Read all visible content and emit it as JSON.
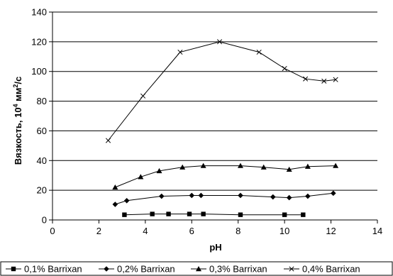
{
  "chart_data": {
    "type": "line",
    "xlabel": "pH",
    "ylabel_main": "Вязкость, 10",
    "ylabel_sup": "4",
    "ylabel_unit": " мм",
    "ylabel_sup2": "2",
    "ylabel_tail": "/с",
    "xlim": [
      0,
      14
    ],
    "ylim": [
      0,
      140
    ],
    "x_ticks": [
      "0",
      "2",
      "4",
      "6",
      "8",
      "10",
      "12",
      "14"
    ],
    "y_ticks": [
      "0",
      "20",
      "40",
      "60",
      "80",
      "100",
      "120",
      "140"
    ],
    "grid": "horizontal",
    "legend_position": "bottom",
    "series": [
      {
        "name": "0,1% Barrixan",
        "marker": "square",
        "color": "#000000",
        "points": [
          [
            3.1,
            3.5
          ],
          [
            4.3,
            4
          ],
          [
            5.0,
            4
          ],
          [
            5.9,
            4
          ],
          [
            6.5,
            4
          ],
          [
            8.1,
            3.5
          ],
          [
            10.0,
            3.5
          ],
          [
            10.8,
            3.5
          ]
        ]
      },
      {
        "name": "0,2% Barrixan",
        "marker": "diamond",
        "color": "#000000",
        "points": [
          [
            2.7,
            10.5
          ],
          [
            3.2,
            13
          ],
          [
            4.7,
            16
          ],
          [
            6.0,
            16.5
          ],
          [
            6.4,
            16.5
          ],
          [
            8.1,
            16.5
          ],
          [
            9.5,
            15.5
          ],
          [
            10.2,
            15
          ],
          [
            11.0,
            16
          ],
          [
            12.1,
            18
          ]
        ]
      },
      {
        "name": "0,3% Barrixan",
        "marker": "triangle",
        "color": "#000000",
        "points": [
          [
            2.7,
            22
          ],
          [
            3.8,
            29
          ],
          [
            4.6,
            33
          ],
          [
            5.6,
            35.5
          ],
          [
            6.5,
            36.5
          ],
          [
            8.1,
            36.5
          ],
          [
            9.1,
            35.5
          ],
          [
            10.2,
            34
          ],
          [
            11.0,
            36
          ],
          [
            12.2,
            36.5
          ]
        ]
      },
      {
        "name": "0,4% Barrixan",
        "marker": "x",
        "color": "#000000",
        "points": [
          [
            2.4,
            53.5
          ],
          [
            3.9,
            83.5
          ],
          [
            5.5,
            113
          ],
          [
            7.2,
            120
          ],
          [
            8.9,
            113
          ],
          [
            10.0,
            102
          ],
          [
            10.9,
            95
          ],
          [
            11.7,
            93.5
          ],
          [
            12.2,
            94.5
          ]
        ]
      }
    ]
  }
}
